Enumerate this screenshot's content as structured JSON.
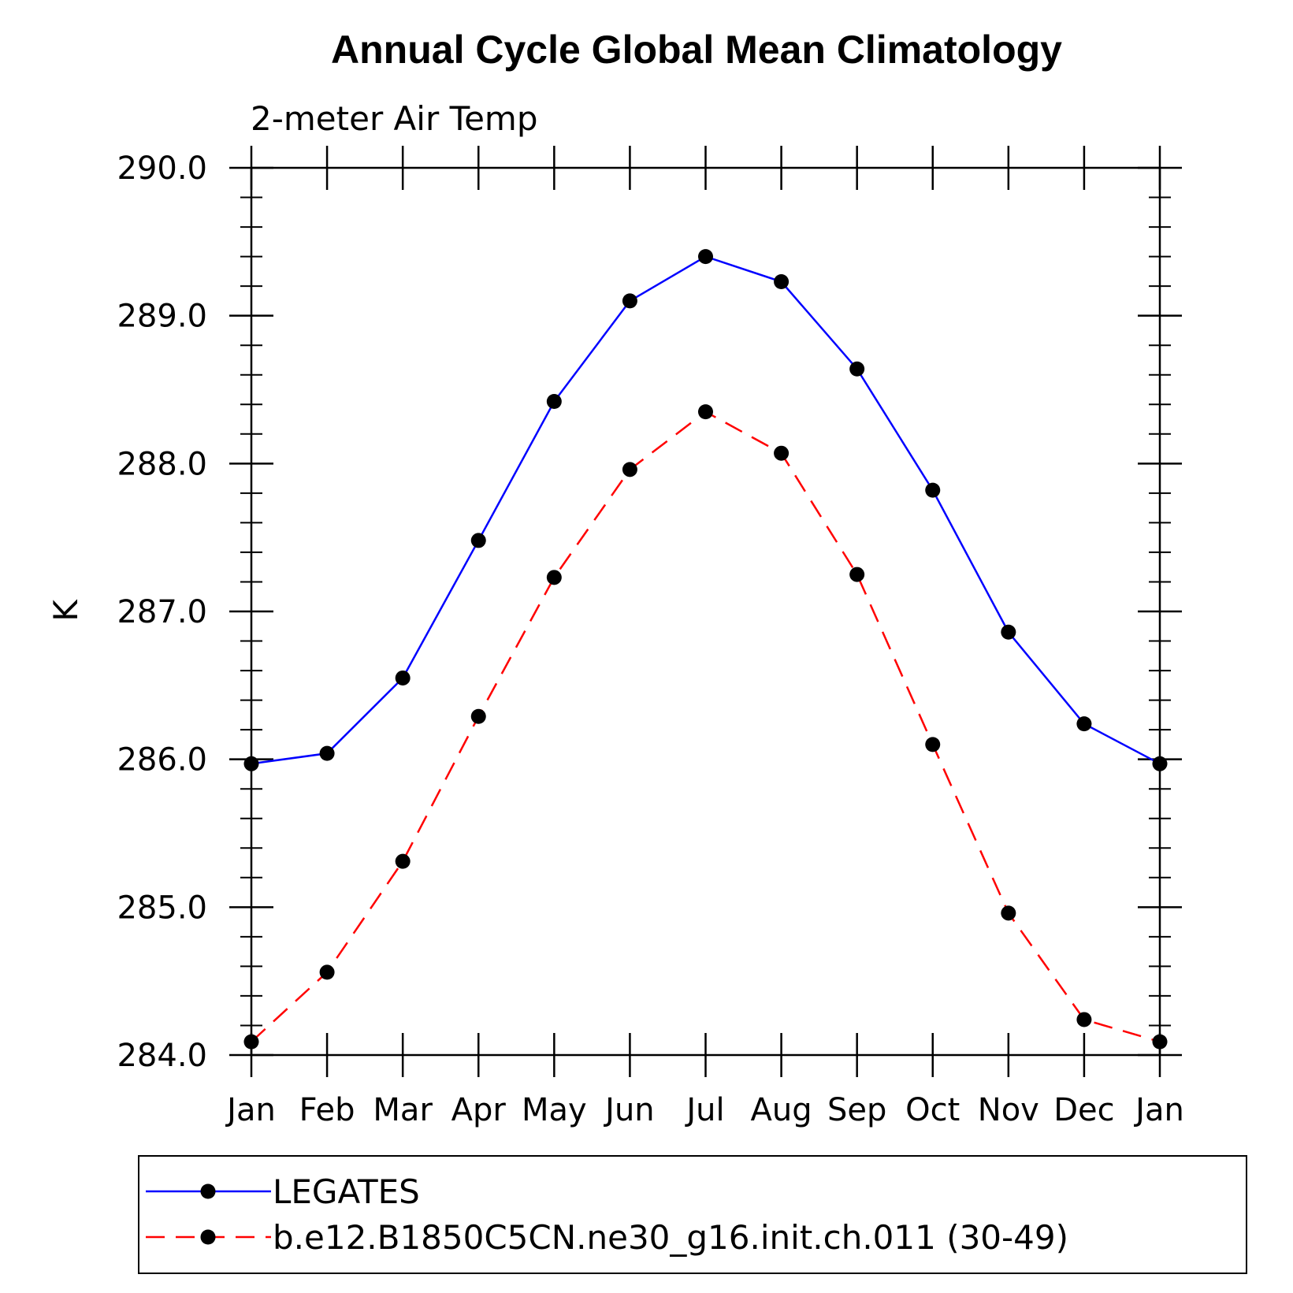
{
  "chart_data": {
    "type": "line",
    "title": "Annual Cycle Global Mean Climatology",
    "subtitle": "2-meter Air Temp",
    "xlabel": "",
    "ylabel": "K",
    "ylim": [
      284.0,
      290.0
    ],
    "yticks": [
      "284.0",
      "285.0",
      "286.0",
      "287.0",
      "288.0",
      "289.0",
      "290.0"
    ],
    "categories": [
      "Jan",
      "Feb",
      "Mar",
      "Apr",
      "May",
      "Jun",
      "Jul",
      "Aug",
      "Sep",
      "Oct",
      "Nov",
      "Dec",
      "Jan"
    ],
    "series": [
      {
        "name": "LEGATES",
        "color": "#0000ff",
        "dash": "solid",
        "values": [
          285.97,
          286.04,
          286.55,
          287.48,
          288.42,
          289.1,
          289.4,
          289.23,
          288.64,
          287.82,
          286.86,
          286.24,
          285.97
        ]
      },
      {
        "name": "b.e12.B1850C5CN.ne30_g16.init.ch.011 (30-49)",
        "color": "#ff0000",
        "dash": "dashed",
        "values": [
          284.09,
          284.56,
          285.31,
          286.29,
          287.23,
          287.96,
          288.35,
          288.07,
          287.25,
          286.1,
          284.96,
          284.24,
          284.09
        ]
      }
    ],
    "legend_position": "bottom",
    "grid": false
  }
}
